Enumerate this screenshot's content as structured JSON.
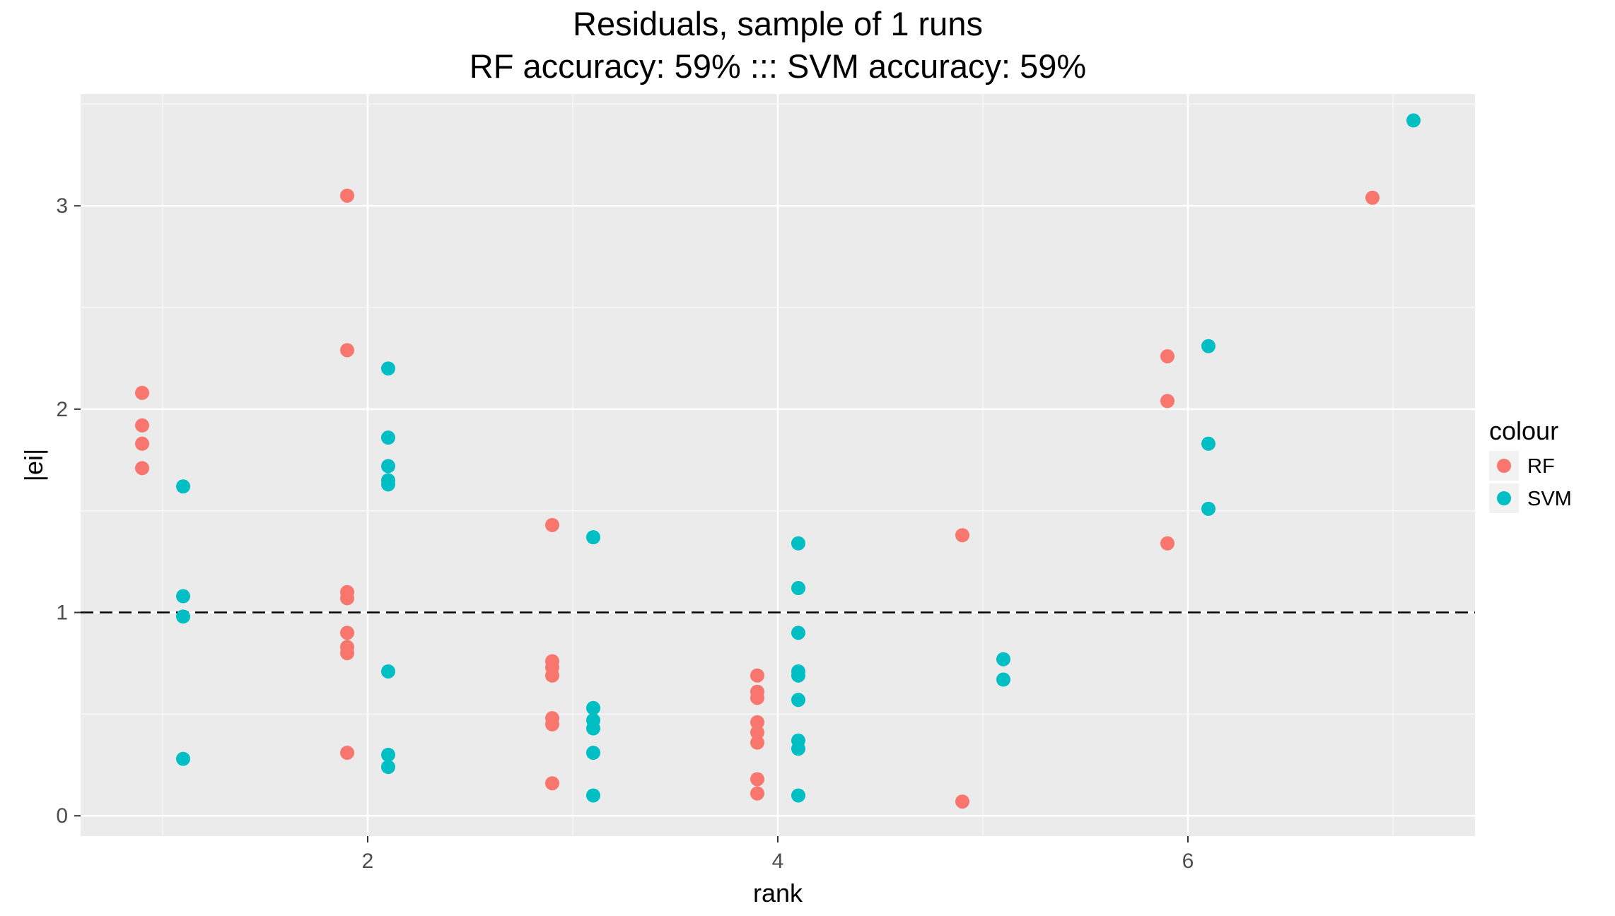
{
  "chart_data": {
    "type": "scatter",
    "title": "Residuals, sample of 1 runs",
    "subtitle": "RF accuracy: 59% ::: SVM accuracy: 59%",
    "xlabel": "rank",
    "ylabel": "|ei|",
    "xlim": [
      0.6,
      7.4
    ],
    "ylim": [
      -0.1,
      3.55
    ],
    "xticks": [
      2,
      4,
      6
    ],
    "yticks": [
      0,
      1,
      2,
      3
    ],
    "xtick_labels": [
      "2",
      "4",
      "6"
    ],
    "ytick_labels": [
      "0",
      "1",
      "2",
      "3"
    ],
    "grid": true,
    "reference_line": {
      "y": 1,
      "style": "dashed"
    },
    "legend": {
      "title": "colour",
      "position": "right"
    },
    "series": [
      {
        "name": "RF",
        "color": "#F8766D",
        "points": [
          [
            0.9,
            2.08
          ],
          [
            0.9,
            1.92
          ],
          [
            0.9,
            1.83
          ],
          [
            0.9,
            1.71
          ],
          [
            1.9,
            3.05
          ],
          [
            1.9,
            2.29
          ],
          [
            1.9,
            1.1
          ],
          [
            1.9,
            1.07
          ],
          [
            1.9,
            0.9
          ],
          [
            1.9,
            0.83
          ],
          [
            1.9,
            0.8
          ],
          [
            1.9,
            0.31
          ],
          [
            2.9,
            1.43
          ],
          [
            2.9,
            0.76
          ],
          [
            2.9,
            0.73
          ],
          [
            2.9,
            0.69
          ],
          [
            2.9,
            0.48
          ],
          [
            2.9,
            0.45
          ],
          [
            2.9,
            0.16
          ],
          [
            3.9,
            0.69
          ],
          [
            3.9,
            0.61
          ],
          [
            3.9,
            0.58
          ],
          [
            3.9,
            0.46
          ],
          [
            3.9,
            0.41
          ],
          [
            3.9,
            0.36
          ],
          [
            3.9,
            0.18
          ],
          [
            3.9,
            0.11
          ],
          [
            4.9,
            1.38
          ],
          [
            4.9,
            0.07
          ],
          [
            5.9,
            2.26
          ],
          [
            5.9,
            2.04
          ],
          [
            5.9,
            1.34
          ],
          [
            6.9,
            3.04
          ]
        ]
      },
      {
        "name": "SVM",
        "color": "#00BFC4",
        "points": [
          [
            1.1,
            1.62
          ],
          [
            1.1,
            1.08
          ],
          [
            1.1,
            0.98
          ],
          [
            1.1,
            0.28
          ],
          [
            2.1,
            2.2
          ],
          [
            2.1,
            1.86
          ],
          [
            2.1,
            1.72
          ],
          [
            2.1,
            1.65
          ],
          [
            2.1,
            1.63
          ],
          [
            2.1,
            0.71
          ],
          [
            2.1,
            0.3
          ],
          [
            2.1,
            0.24
          ],
          [
            3.1,
            1.37
          ],
          [
            3.1,
            0.53
          ],
          [
            3.1,
            0.47
          ],
          [
            3.1,
            0.43
          ],
          [
            3.1,
            0.31
          ],
          [
            3.1,
            0.1
          ],
          [
            4.1,
            1.34
          ],
          [
            4.1,
            1.12
          ],
          [
            4.1,
            0.9
          ],
          [
            4.1,
            0.71
          ],
          [
            4.1,
            0.69
          ],
          [
            4.1,
            0.57
          ],
          [
            4.1,
            0.37
          ],
          [
            4.1,
            0.33
          ],
          [
            4.1,
            0.1
          ],
          [
            5.1,
            0.77
          ],
          [
            5.1,
            0.67
          ],
          [
            6.1,
            2.31
          ],
          [
            6.1,
            1.83
          ],
          [
            6.1,
            1.51
          ],
          [
            7.1,
            3.42
          ]
        ]
      }
    ]
  }
}
